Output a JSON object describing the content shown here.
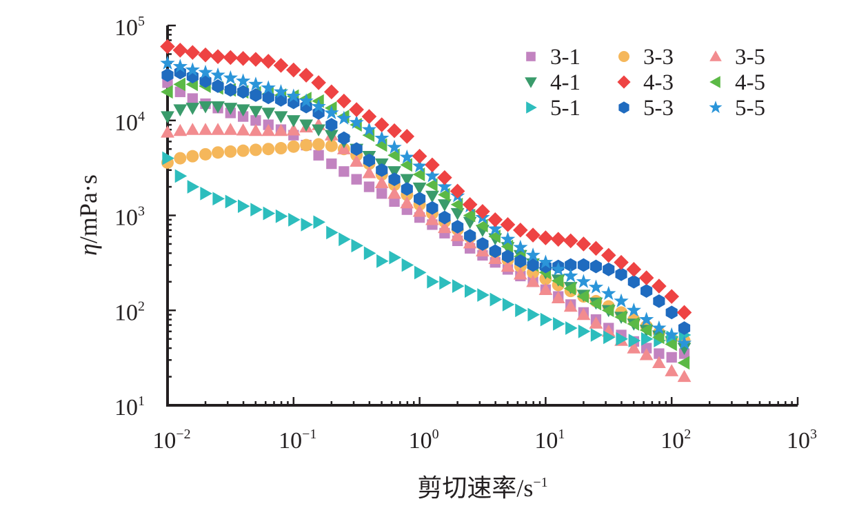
{
  "chart_data": {
    "type": "scatter",
    "title": "",
    "xlabel": "剪切速率/s",
    "xlabel_superscript": "−1",
    "ylabel_italic": "η",
    "ylabel": "/mPa·s",
    "xscale": "log",
    "yscale": "log",
    "xlim": [
      0.01,
      1000
    ],
    "ylim": [
      10,
      100000
    ],
    "grid": false,
    "legend_position": "top-right",
    "x_ticks": [
      {
        "base": "10",
        "exp": "−2"
      },
      {
        "base": "10",
        "exp": "−1"
      },
      {
        "base": "10",
        "exp": "0"
      },
      {
        "base": "10",
        "exp": "1"
      },
      {
        "base": "10",
        "exp": "2"
      },
      {
        "base": "10",
        "exp": "3"
      }
    ],
    "y_ticks": [
      {
        "base": "10",
        "exp": "1"
      },
      {
        "base": "10",
        "exp": "2"
      },
      {
        "base": "10",
        "exp": "3"
      },
      {
        "base": "10",
        "exp": "4"
      },
      {
        "base": "10",
        "exp": "5"
      }
    ],
    "x": [
      0.01,
      0.0126,
      0.0158,
      0.02,
      0.0251,
      0.0316,
      0.0398,
      0.0501,
      0.0631,
      0.0794,
      0.1,
      0.126,
      0.158,
      0.2,
      0.251,
      0.316,
      0.398,
      0.501,
      0.631,
      0.794,
      1.0,
      1.26,
      1.58,
      2.0,
      2.51,
      3.16,
      3.98,
      5.01,
      6.31,
      7.94,
      10.0,
      12.6,
      15.8,
      20.0,
      25.1,
      31.6,
      39.8,
      50.1,
      63.1,
      79.4,
      100,
      126
    ],
    "series": [
      {
        "name": "3-1",
        "marker": "square",
        "color": "#c283c0",
        "values": [
          25000,
          20000,
          17000,
          15000,
          13500,
          12000,
          11000,
          10000,
          9000,
          8000,
          7000,
          5500,
          4300,
          3500,
          2900,
          2400,
          2000,
          1700,
          1400,
          1150,
          950,
          800,
          650,
          540,
          450,
          380,
          320,
          270,
          230,
          200,
          165,
          140,
          115,
          95,
          80,
          65,
          55,
          47,
          40,
          35,
          32,
          35
        ]
      },
      {
        "name": "3-3",
        "marker": "circle",
        "color": "#f5b75b",
        "values": [
          3600,
          4000,
          4200,
          4400,
          4600,
          4700,
          4800,
          4900,
          5000,
          5100,
          5300,
          5500,
          5600,
          5400,
          5000,
          4300,
          3500,
          2700,
          2100,
          1650,
          1300,
          1050,
          860,
          710,
          590,
          490,
          410,
          340,
          290,
          250,
          215,
          185,
          160,
          140,
          125,
          110,
          95,
          80,
          68,
          58,
          50,
          48
        ]
      },
      {
        "name": "3-5",
        "marker": "triangle-up",
        "color": "#f28c8f",
        "values": [
          7500,
          7800,
          8000,
          8000,
          8000,
          8000,
          7900,
          7800,
          7800,
          7800,
          7900,
          8500,
          9000,
          7000,
          5000,
          3700,
          2800,
          2200,
          1700,
          1350,
          1100,
          900,
          740,
          610,
          510,
          420,
          350,
          290,
          240,
          200,
          165,
          135,
          110,
          90,
          73,
          60,
          48,
          40,
          34,
          28,
          23,
          20
        ]
      },
      {
        "name": "4-1",
        "marker": "triangle-down",
        "color": "#3a9b6b",
        "values": [
          11000,
          13000,
          13500,
          14000,
          14000,
          13500,
          13000,
          12500,
          12000,
          11000,
          10000,
          9000,
          8000,
          7000,
          6000,
          5000,
          4200,
          3500,
          2900,
          2400,
          1950,
          1600,
          1300,
          1050,
          850,
          700,
          570,
          460,
          380,
          310,
          250,
          210,
          175,
          145,
          120,
          100,
          85,
          72,
          62,
          54,
          47,
          40
        ]
      },
      {
        "name": "4-3",
        "marker": "diamond",
        "color": "#ee4343",
        "values": [
          60000,
          55000,
          52000,
          49000,
          47000,
          46000,
          45000,
          44000,
          42000,
          38000,
          34000,
          30000,
          25000,
          20000,
          16000,
          13000,
          11000,
          9000,
          7800,
          6800,
          4200,
          3400,
          2500,
          1800,
          1300,
          1100,
          900,
          800,
          700,
          620,
          580,
          560,
          540,
          500,
          450,
          380,
          320,
          270,
          220,
          180,
          140,
          95
        ]
      },
      {
        "name": "4-5",
        "marker": "triangle-left",
        "color": "#5bb946",
        "values": [
          20000,
          24000,
          24000,
          23000,
          22000,
          21000,
          20000,
          19500,
          19000,
          18500,
          18000,
          17000,
          16000,
          13500,
          11000,
          9000,
          7000,
          5500,
          4300,
          3400,
          2700,
          2100,
          1650,
          1300,
          1000,
          780,
          600,
          470,
          370,
          300,
          250,
          205,
          170,
          140,
          118,
          100,
          85,
          72,
          62,
          52,
          44,
          28
        ]
      },
      {
        "name": "5-1",
        "marker": "triangle-right",
        "color": "#2dbdbd",
        "values": [
          4000,
          2600,
          2000,
          1700,
          1500,
          1400,
          1250,
          1150,
          1050,
          980,
          900,
          800,
          850,
          660,
          560,
          480,
          400,
          330,
          360,
          300,
          250,
          200,
          195,
          180,
          160,
          145,
          130,
          115,
          100,
          90,
          80,
          72,
          65,
          60,
          55,
          52,
          50,
          48,
          50,
          48,
          52,
          55
        ]
      },
      {
        "name": "5-3",
        "marker": "hexagon",
        "color": "#1f6bbf",
        "values": [
          30000,
          32000,
          29000,
          26000,
          23000,
          21000,
          20000,
          18500,
          17500,
          16500,
          15500,
          14000,
          12000,
          9000,
          6500,
          5000,
          3800,
          3000,
          2400,
          1900,
          1500,
          1200,
          950,
          760,
          610,
          500,
          420,
          370,
          330,
          300,
          290,
          290,
          300,
          300,
          290,
          270,
          240,
          200,
          160,
          125,
          95,
          65
        ]
      },
      {
        "name": "5-5",
        "marker": "star",
        "color": "#2b95d9",
        "values": [
          40000,
          37000,
          34000,
          32000,
          30000,
          28000,
          26000,
          24000,
          22000,
          20000,
          18000,
          16000,
          14000,
          12000,
          10500,
          9500,
          8000,
          6500,
          5200,
          4100,
          3300,
          2600,
          2000,
          1600,
          1250,
          950,
          720,
          560,
          460,
          380,
          320,
          270,
          230,
          200,
          175,
          150,
          125,
          100,
          80,
          65,
          55,
          45
        ]
      }
    ]
  }
}
